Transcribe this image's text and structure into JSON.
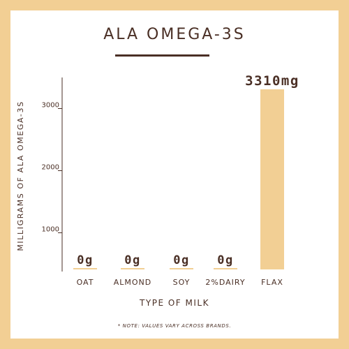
{
  "chart_data": {
    "type": "bar",
    "title": "ALA OMEGA-3S",
    "xlabel": "TYPE OF MILK",
    "ylabel": "MILLIGRAMS OF ALA OMEGA-3S",
    "categories": [
      "OAT",
      "ALMOND",
      "SOY",
      "2%DAIRY",
      "FLAX"
    ],
    "values": [
      0,
      0,
      0,
      0,
      3310
    ],
    "data_labels": [
      "0g",
      "0g",
      "0g",
      "0g",
      "3310mg"
    ],
    "yticks": [
      "1000",
      "2000",
      "3000"
    ],
    "ytick_values": [
      1000,
      2000,
      3000
    ],
    "ylim": [
      410,
      3500
    ],
    "grid": false,
    "bar_color": "#f2cf94",
    "text_color": "#4a2f25",
    "note": "* NOTE: VALUES VARY ACROSS BRANDS."
  }
}
